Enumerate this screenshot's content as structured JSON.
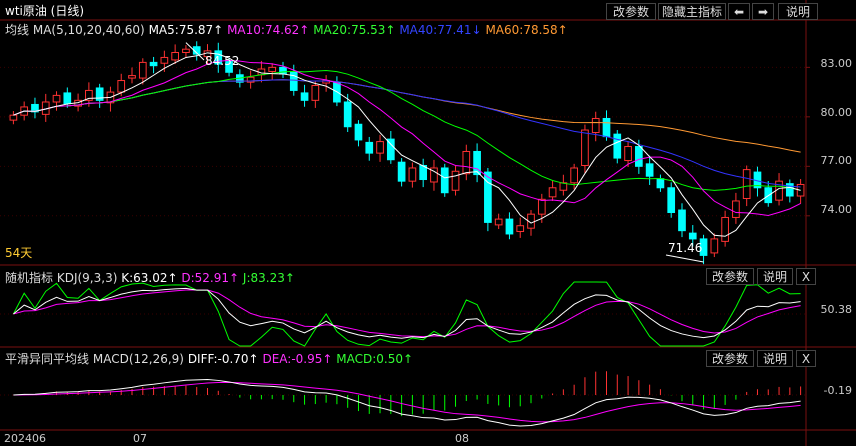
{
  "window": {
    "title": "wti原油 (日线)"
  },
  "toolbar": {
    "params_label": "改参数",
    "hide_label": "隐藏主指标",
    "left_arrow": "⬅",
    "right_arrow": "➡",
    "help_label": "说明"
  },
  "main_legend": {
    "name": "均线",
    "params": "MA(5,10,20,40,60)",
    "ma5": "MA5:75.87↑",
    "ma10": "MA10:74.62↑",
    "ma20": "MA20:75.53↑",
    "ma40": "MA40:77.41↓",
    "ma60": "MA60:78.58↑"
  },
  "main_axis": [
    "83.00",
    "80.00",
    "77.00",
    "74.00"
  ],
  "annotations": {
    "high": "84.52",
    "low": "71.46",
    "days": "54天"
  },
  "kdj": {
    "name": "随机指标",
    "params": "KDJ(9,3,3)",
    "k": "K:63.02↑",
    "d": "D:52.91↑",
    "j": "J:83.23↑",
    "params_label": "改参数",
    "help_label": "说明",
    "close_label": "X",
    "axis": "50.38"
  },
  "macd": {
    "name": "平滑异同平均线",
    "params": "MACD(12,26,9)",
    "diff": "DIFF:-0.70↑",
    "dea": "DEA:-0.95↑",
    "macd_val": "MACD:0.50↑",
    "params_label": "改参数",
    "help_label": "说明",
    "close_label": "X",
    "axis": "-0.19"
  },
  "dates": [
    "202406",
    "07",
    "08"
  ],
  "colors": {
    "up": "#ff3232",
    "down": "#00ffff",
    "ma5": "#ffffff",
    "ma10": "#ff00ff",
    "ma20": "#00ff00",
    "ma40": "#3333ff",
    "ma60": "#ff9933"
  },
  "chart_data": {
    "type": "candlestick",
    "period": "daily",
    "y_axis_ticks": [
      74.0,
      77.0,
      80.0,
      83.0
    ],
    "ylim": [
      71.2,
      84.9
    ],
    "close": [
      80.1,
      80.6,
      80.3,
      80.9,
      81.3,
      80.8,
      81.0,
      81.6,
      81.0,
      81.5,
      82.2,
      82.5,
      83.3,
      83.1,
      83.6,
      83.9,
      84.1,
      83.8,
      84.0,
      83.2,
      82.7,
      82.1,
      82.4,
      82.9,
      83.0,
      82.6,
      81.6,
      81.0,
      81.9,
      82.2,
      80.9,
      79.4,
      78.6,
      77.8,
      78.5,
      77.4,
      76.1,
      76.9,
      76.2,
      76.9,
      75.4,
      76.7,
      77.9,
      76.5,
      73.6,
      73.8,
      72.9,
      73.4,
      74.1,
      75.0,
      75.7,
      76.0,
      76.9,
      79.2,
      79.9,
      78.8,
      77.5,
      78.2,
      77.0,
      76.4,
      75.7,
      74.2,
      73.1,
      72.6,
      71.6,
      72.6,
      73.9,
      74.9,
      76.8,
      75.7,
      74.8,
      76.1,
      75.2,
      75.9
    ]
  }
}
